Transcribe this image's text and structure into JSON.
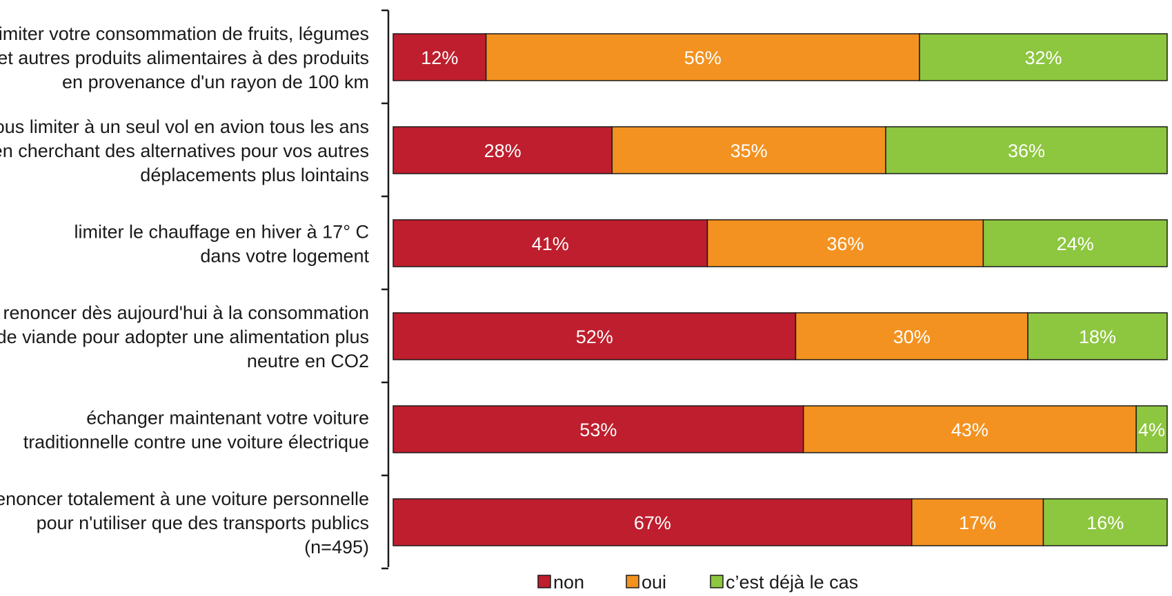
{
  "chart_data": {
    "type": "bar",
    "orientation": "horizontal",
    "stacked": true,
    "categories": [
      [
        "limiter votre consommation de fruits, légumes",
        "et autres produits alimentaires à des produits",
        "en provenance d'un rayon de 100 km"
      ],
      [
        "vous limiter à un seul vol en avion tous les ans",
        "en cherchant des alternatives pour vos autres",
        "déplacements plus lointains"
      ],
      [
        "limiter le chauffage en hiver à 17° C",
        "dans votre logement"
      ],
      [
        "renoncer dès aujourd'hui à la consommation",
        "de viande pour adopter une alimentation plus",
        "neutre en CO2"
      ],
      [
        "échanger maintenant votre voiture",
        "traditionnelle contre une voiture électrique"
      ],
      [
        "renoncer totalement à une voiture personnelle",
        "pour n'utiliser que des transports publics",
        "(n=495)"
      ]
    ],
    "series": [
      {
        "name": "non",
        "color": "#be1e2d",
        "values": [
          12,
          28,
          41,
          52,
          53,
          67
        ],
        "labels": [
          "12%",
          "28%",
          "41%",
          "52%",
          "53%",
          "67%"
        ]
      },
      {
        "name": "oui",
        "color": "#f39220",
        "values": [
          56,
          35,
          36,
          30,
          43,
          17
        ],
        "labels": [
          "56%",
          "35%",
          "36%",
          "30%",
          "43%",
          "17%"
        ]
      },
      {
        "name": "c’est déjà le cas",
        "color": "#8dc63f",
        "values": [
          32,
          36,
          24,
          18,
          4,
          16
        ],
        "labels": [
          "32%",
          "36%",
          "24%",
          "18%",
          "4%",
          "16%"
        ]
      }
    ],
    "legend_position": "bottom",
    "grid": false
  }
}
